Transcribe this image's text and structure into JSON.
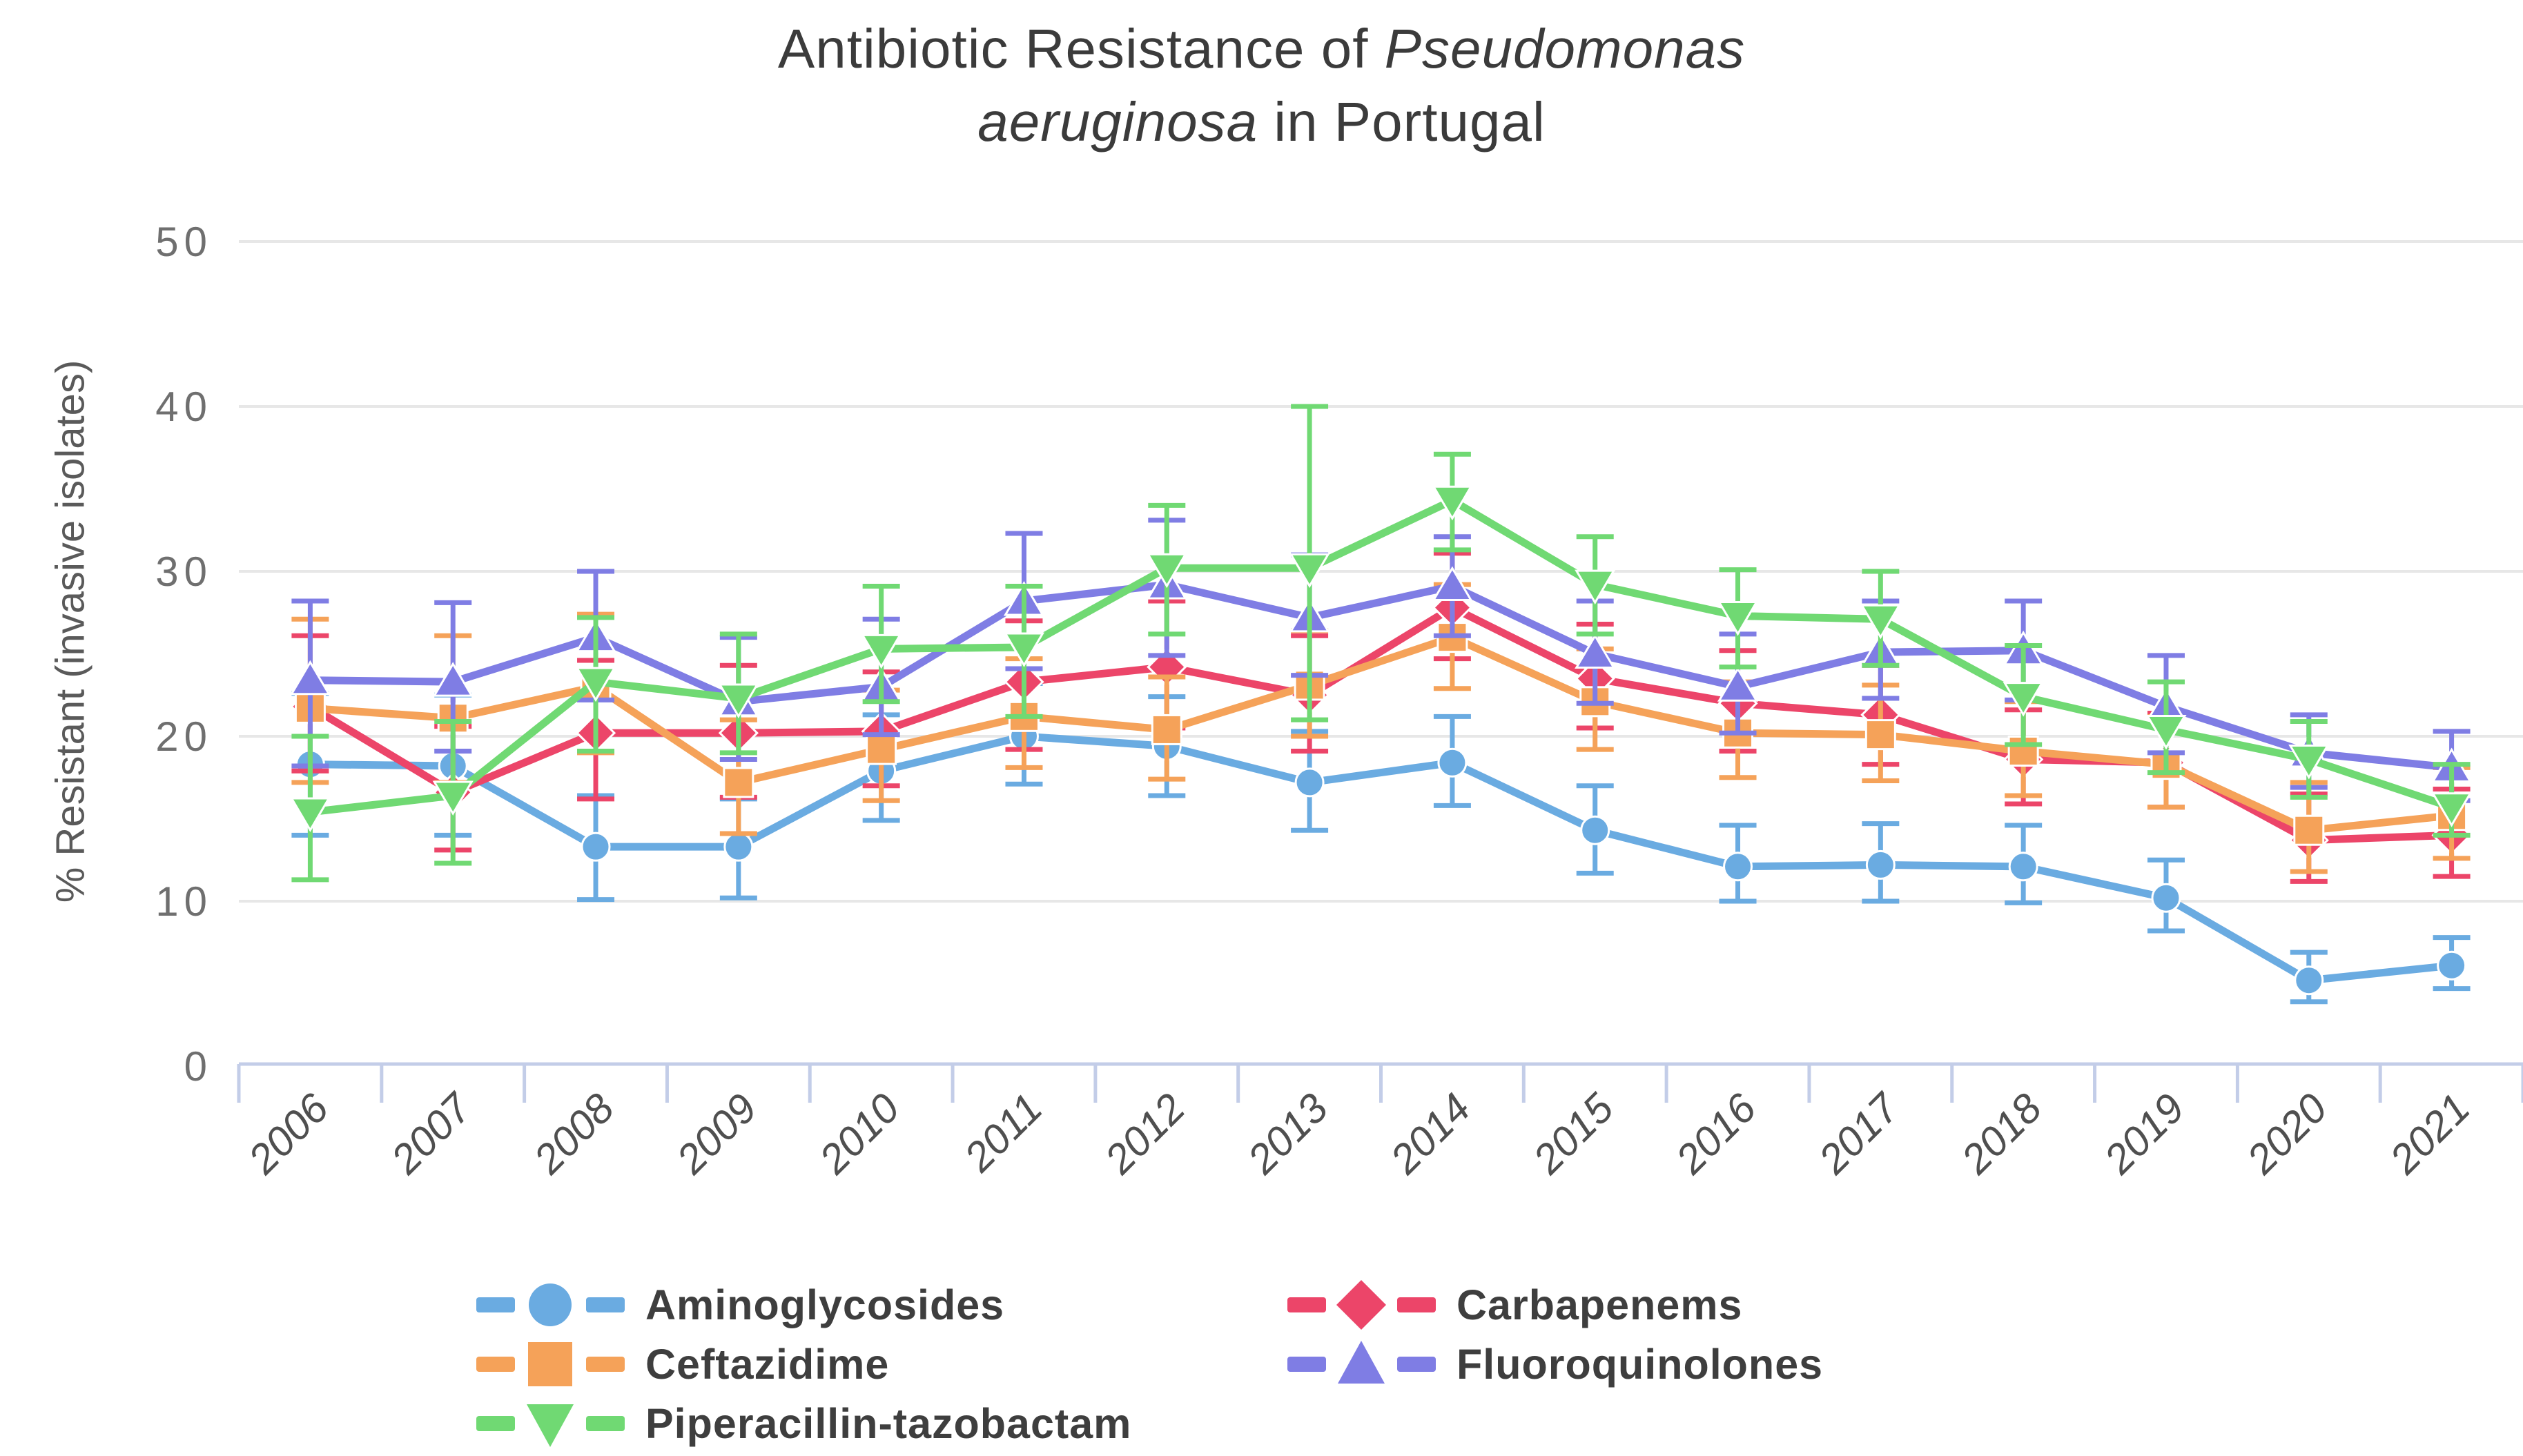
{
  "title": {
    "line1_pre": "Antibiotic Resistance of ",
    "line1_italic": "Pseudomonas",
    "line2_italic": "aeruginosa",
    "line2_post": " in Portugal"
  },
  "y_axis": {
    "label": "% Resistant (invasive isolates)",
    "ticks": [
      0,
      10,
      20,
      30,
      40,
      50
    ],
    "min": 0,
    "max": 50
  },
  "x_axis": {
    "years": [
      "2006",
      "2007",
      "2008",
      "2009",
      "2010",
      "2011",
      "2012",
      "2013",
      "2014",
      "2015",
      "2016",
      "2017",
      "2018",
      "2019",
      "2020",
      "2021"
    ]
  },
  "colors": {
    "background": "#ffffff",
    "grid": "#e7e7e7",
    "axis_comb": "#c3cde8",
    "title_text": "#3b3b3b",
    "y_tick_text": "#6f6f6f",
    "x_tick_text": "#4f4f4f",
    "legend_text": "#3e3e3e"
  },
  "chart_data": {
    "type": "line",
    "title": "Antibiotic Resistance of Pseudomonas aeruginosa in Portugal",
    "xlabel": "",
    "ylabel": "% Resistant (invasive isolates)",
    "ylim": [
      0,
      50
    ],
    "grid": true,
    "error_bars": true,
    "legend_position": "bottom",
    "x": [
      "2006",
      "2007",
      "2008",
      "2009",
      "2010",
      "2011",
      "2012",
      "2013",
      "2014",
      "2015",
      "2016",
      "2017",
      "2018",
      "2019",
      "2020",
      "2021"
    ],
    "series": [
      {
        "name": "Aminoglycosides",
        "color": "#6AABE1",
        "marker": "circle",
        "values": [
          18.3,
          18.2,
          13.3,
          13.3,
          17.9,
          20.0,
          19.4,
          17.2,
          18.4,
          14.3,
          12.1,
          12.2,
          12.1,
          10.2,
          5.2,
          6.1
        ],
        "err_low": [
          14.0,
          14.0,
          10.1,
          10.2,
          14.9,
          17.1,
          16.4,
          14.3,
          15.8,
          11.7,
          10.0,
          10.0,
          9.9,
          8.2,
          3.9,
          4.7
        ],
        "err_high": [
          22.6,
          22.5,
          16.4,
          16.2,
          21.3,
          23.2,
          22.4,
          20.3,
          21.2,
          17.0,
          14.6,
          14.7,
          14.6,
          12.5,
          6.9,
          7.8
        ]
      },
      {
        "name": "Carbapenems",
        "color": "#EC4569",
        "marker": "diamond",
        "values": [
          21.8,
          16.6,
          20.2,
          20.2,
          20.3,
          23.3,
          24.2,
          22.5,
          27.8,
          23.5,
          22.0,
          21.3,
          18.6,
          18.4,
          13.7,
          14.0
        ],
        "err_low": [
          17.9,
          13.1,
          16.2,
          16.3,
          17.0,
          19.2,
          20.5,
          19.1,
          24.7,
          20.5,
          19.1,
          18.3,
          15.9,
          15.7,
          11.2,
          11.5
        ],
        "err_high": [
          26.1,
          20.6,
          24.6,
          24.3,
          23.9,
          27.0,
          28.2,
          26.1,
          31.1,
          26.8,
          25.2,
          24.3,
          21.6,
          21.4,
          16.5,
          16.8
        ]
      },
      {
        "name": "Ceftazidime",
        "color": "#F5A259",
        "marker": "square",
        "values": [
          21.7,
          21.1,
          23.0,
          17.2,
          19.2,
          21.2,
          20.4,
          23.1,
          26.0,
          22.1,
          20.2,
          20.1,
          19.1,
          18.3,
          14.3,
          15.2
        ],
        "err_low": [
          17.2,
          17.2,
          19.0,
          14.1,
          16.1,
          18.1,
          17.4,
          20.0,
          22.9,
          19.2,
          17.5,
          17.3,
          16.4,
          15.7,
          11.8,
          12.6
        ],
        "err_high": [
          27.1,
          26.1,
          27.4,
          21.0,
          22.8,
          24.7,
          23.6,
          26.4,
          29.2,
          25.3,
          23.3,
          23.1,
          22.1,
          21.2,
          17.2,
          18.1
        ]
      },
      {
        "name": "Fluoroquinolones",
        "color": "#7F7DE4",
        "marker": "triangle-up",
        "values": [
          23.4,
          23.3,
          26.0,
          22.1,
          23.0,
          28.2,
          29.2,
          27.2,
          29.1,
          25.0,
          23.0,
          25.1,
          25.2,
          21.8,
          19.0,
          18.1
        ],
        "err_low": [
          18.2,
          19.1,
          22.2,
          18.6,
          20.1,
          24.1,
          24.9,
          23.7,
          26.1,
          22.0,
          20.2,
          22.3,
          22.2,
          19.0,
          16.9,
          16.1
        ],
        "err_high": [
          28.2,
          28.1,
          30.0,
          26.0,
          27.1,
          32.3,
          33.1,
          31.0,
          32.1,
          28.2,
          26.2,
          28.2,
          28.2,
          24.9,
          21.3,
          20.3
        ]
      },
      {
        "name": "Piperacillin-tazobactam",
        "color": "#70D973",
        "marker": "triangle-down",
        "values": [
          15.4,
          16.4,
          23.3,
          22.3,
          25.3,
          25.4,
          30.2,
          30.2,
          34.3,
          29.2,
          27.3,
          27.1,
          22.4,
          20.4,
          18.6,
          15.7
        ],
        "err_low": [
          11.3,
          12.3,
          19.1,
          19.0,
          22.1,
          21.2,
          26.2,
          21.0,
          31.3,
          26.2,
          24.2,
          24.3,
          19.5,
          17.8,
          16.3,
          14.0
        ],
        "err_high": [
          20.0,
          20.9,
          27.2,
          26.2,
          29.1,
          29.1,
          34.0,
          40.0,
          37.1,
          32.1,
          30.1,
          30.0,
          25.5,
          23.3,
          20.9,
          18.3
        ]
      }
    ]
  }
}
